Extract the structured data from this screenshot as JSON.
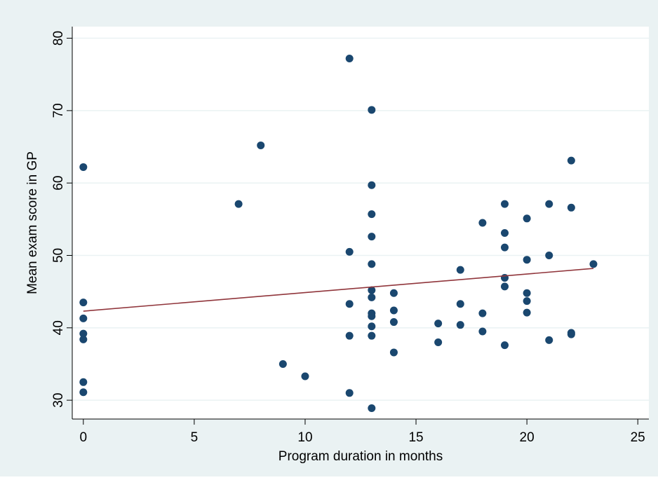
{
  "chart_data": {
    "type": "scatter",
    "x_label": "Program duration in months",
    "y_label": "Mean exam score in GP",
    "xlim": [
      -0.5,
      25.5
    ],
    "ylim": [
      27.4,
      81.6
    ],
    "xticks": [
      0,
      5,
      10,
      15,
      20,
      25
    ],
    "yticks": [
      30,
      40,
      50,
      60,
      70,
      80
    ],
    "grid": true,
    "series": [
      {
        "type": "scatter",
        "color": "#1a476f",
        "x": [
          0,
          0,
          0,
          0,
          0,
          0,
          0,
          7,
          8,
          9,
          10,
          12,
          12,
          12,
          12,
          12,
          13,
          13,
          13,
          13,
          13,
          13,
          13,
          13,
          13,
          13,
          13,
          13,
          14,
          14,
          14,
          14,
          16,
          16,
          17,
          17,
          17,
          18,
          18,
          18,
          19,
          19,
          19,
          19,
          19,
          19,
          20,
          20,
          20,
          20,
          20,
          21,
          21,
          21,
          22,
          22,
          22,
          22,
          23
        ],
        "values": [
          62.2,
          43.5,
          41.3,
          39.2,
          38.4,
          32.5,
          31.1,
          57.1,
          65.2,
          35.0,
          33.3,
          77.2,
          50.5,
          43.3,
          38.9,
          31.0,
          70.1,
          59.7,
          55.7,
          52.6,
          48.8,
          45.2,
          44.2,
          42.0,
          41.6,
          40.2,
          38.9,
          28.9,
          44.8,
          42.4,
          40.8,
          36.6,
          40.6,
          38.0,
          48.0,
          43.3,
          40.4,
          54.5,
          42.0,
          39.5,
          57.1,
          53.1,
          51.1,
          46.9,
          45.7,
          37.6,
          55.1,
          49.4,
          44.8,
          43.7,
          42.1,
          57.1,
          50.0,
          38.3,
          63.1,
          56.6,
          39.3,
          39.1,
          48.8
        ]
      },
      {
        "type": "line",
        "color": "#90353b",
        "x": [
          0,
          23
        ],
        "values": [
          42.3,
          48.2
        ]
      }
    ]
  }
}
